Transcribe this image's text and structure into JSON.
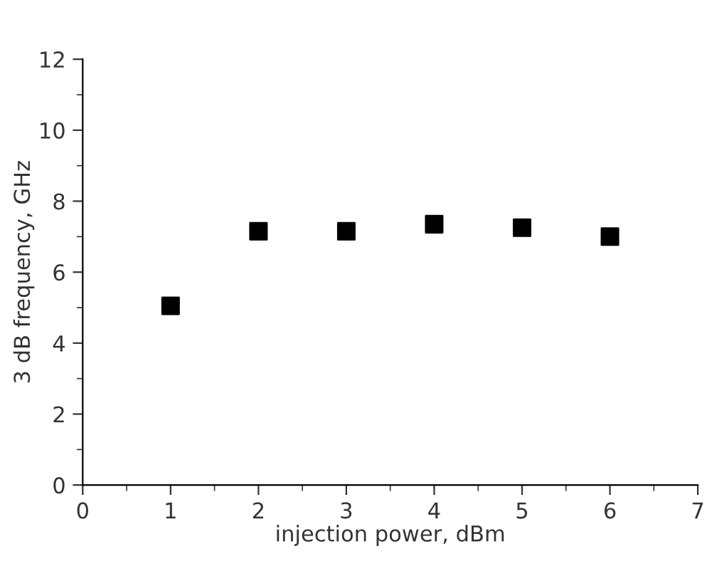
{
  "chart_data": {
    "type": "scatter",
    "xlabel": "injection power, dBm",
    "ylabel": "3 dB frequency, GHz",
    "x": [
      1,
      2,
      3,
      4,
      5,
      6
    ],
    "values": [
      5.05,
      7.15,
      7.15,
      7.35,
      7.25,
      7.0
    ],
    "color": "#000000",
    "marker": "square",
    "xlim": [
      0,
      7
    ],
    "ylim": [
      0,
      12
    ],
    "xticks": [
      0,
      1,
      2,
      3,
      4,
      5,
      6,
      7
    ],
    "yticks": [
      0,
      2,
      4,
      6,
      8,
      10,
      12
    ],
    "grid": false
  }
}
